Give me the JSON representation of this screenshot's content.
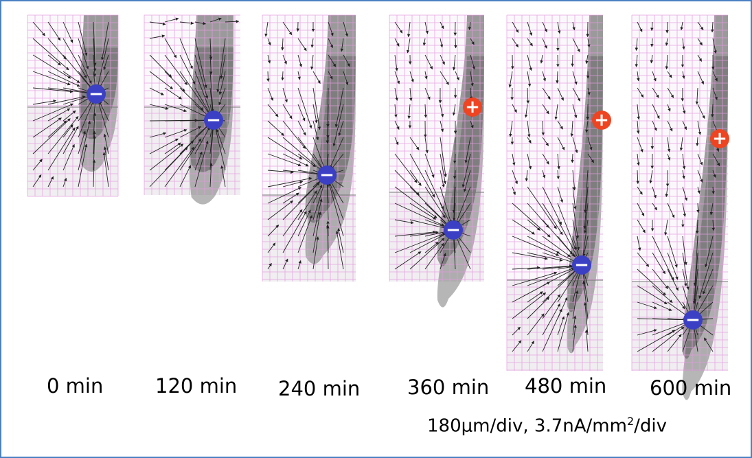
{
  "panels": [
    {
      "time": "0 min",
      "poles": [
        {
          "sign": "−",
          "polarity": "negative"
        }
      ]
    },
    {
      "time": "120 min",
      "poles": [
        {
          "sign": "−",
          "polarity": "negative"
        }
      ]
    },
    {
      "time": "240 min",
      "poles": [
        {
          "sign": "−",
          "polarity": "negative"
        }
      ]
    },
    {
      "time": "360 min",
      "poles": [
        {
          "sign": "+",
          "polarity": "positive"
        },
        {
          "sign": "−",
          "polarity": "negative"
        }
      ]
    },
    {
      "time": "480 min",
      "poles": [
        {
          "sign": "+",
          "polarity": "positive"
        },
        {
          "sign": "−",
          "polarity": "negative"
        }
      ]
    },
    {
      "time": "600 min",
      "poles": [
        {
          "sign": "+",
          "polarity": "positive"
        },
        {
          "sign": "−",
          "polarity": "negative"
        }
      ]
    }
  ],
  "scale": {
    "prefix": "180μm/div,  3.7nA/mm",
    "exponent": "2",
    "suffix": "/div"
  },
  "colors": {
    "negative": "#3b3fc4",
    "positive": "#ee4422",
    "grid": "#e59be0",
    "border": "#4a7fc2"
  }
}
